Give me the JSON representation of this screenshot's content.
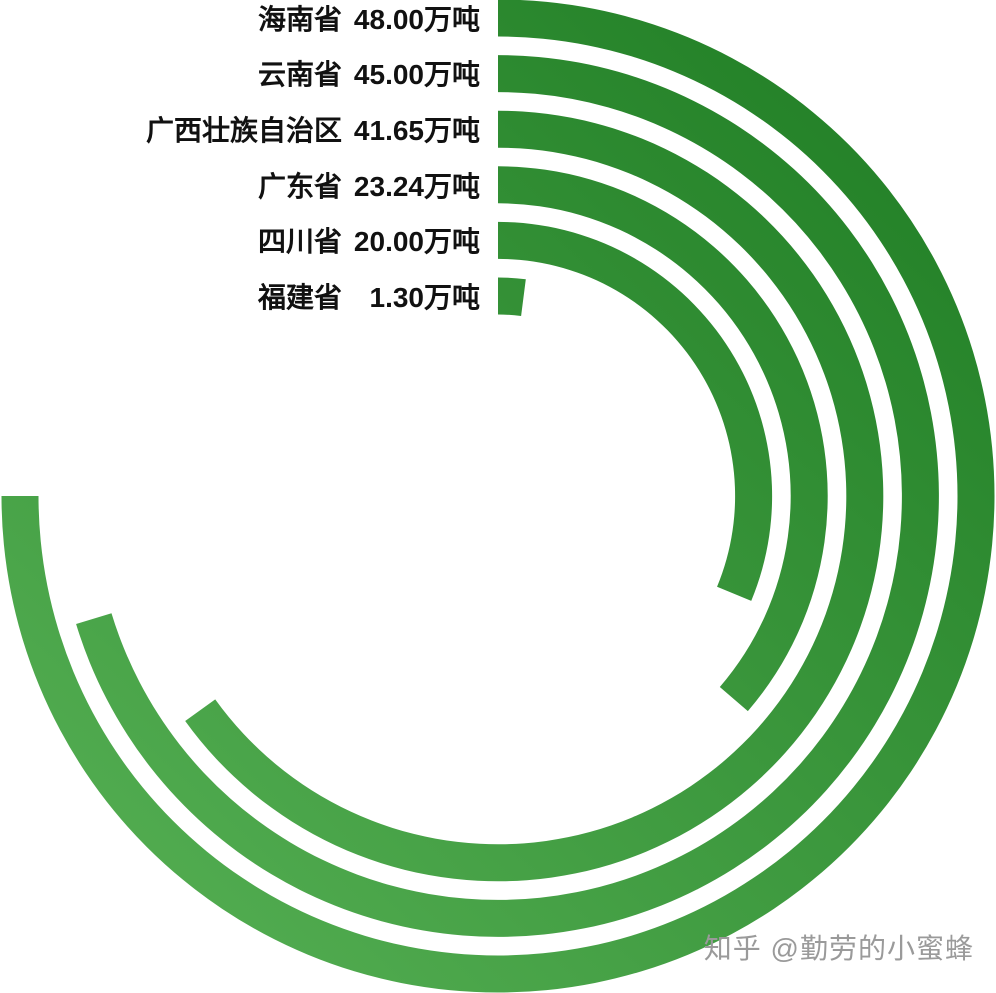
{
  "chart_data": {
    "type": "radial-bar",
    "title": "",
    "unit": "万吨",
    "start_angle_deg": 0,
    "direction": "clockwise",
    "max_value": 48,
    "max_sweep_deg": 270,
    "categories": [
      "海南省",
      "云南省",
      "广西壮族自治区",
      "广东省",
      "四川省",
      "福建省"
    ],
    "values": [
      48.0,
      45.0,
      41.65,
      23.24,
      20.0,
      1.3
    ],
    "items": [
      {
        "name": "海南省",
        "value": 48.0,
        "value_text": "48.00万吨"
      },
      {
        "name": "云南省",
        "value": 45.0,
        "value_text": "45.00万吨"
      },
      {
        "name": "广西壮族自治区",
        "value": 41.65,
        "value_text": "41.65万吨"
      },
      {
        "name": "广东省",
        "value": 23.24,
        "value_text": "23.24万吨"
      },
      {
        "name": "四川省",
        "value": 20.0,
        "value_text": "20.00万吨"
      },
      {
        "name": "福建省",
        "value": 1.3,
        "value_text": "1.30万吨"
      }
    ],
    "colors": {
      "arc_gradient_start": "#1e7c23",
      "arc_gradient_end": "#56b054",
      "label_text": "#111111",
      "background": "#ffffff"
    },
    "legend_position": "top-left",
    "grid": false
  },
  "watermark": {
    "text": "知乎 @勤劳的小蜜蜂",
    "color": "#9a9a9a"
  }
}
